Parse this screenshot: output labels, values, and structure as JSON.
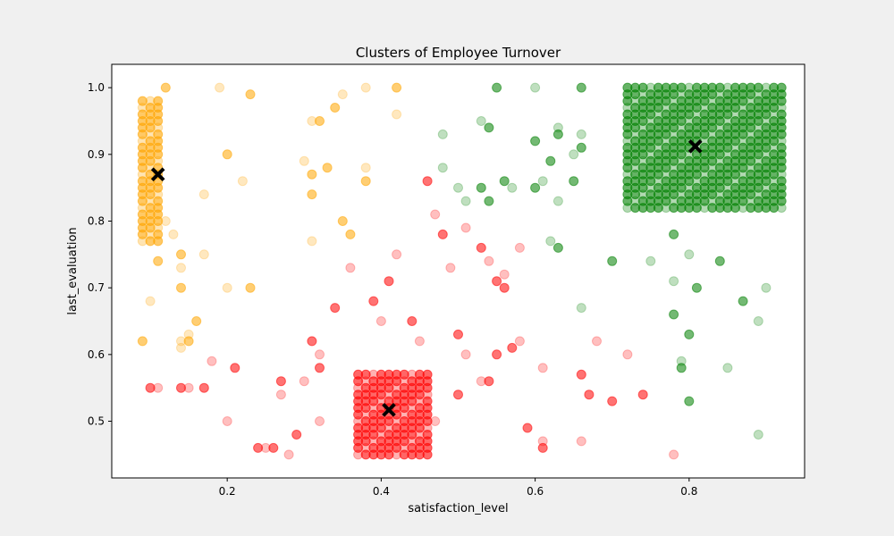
{
  "chart_data": {
    "type": "scatter",
    "title": "Clusters of Employee Turnover",
    "xlabel": "satisfaction_level",
    "ylabel": "last_evaluation",
    "xlim": [
      0.05,
      0.95
    ],
    "ylim": [
      0.415,
      1.035
    ],
    "x_ticks": [
      0.2,
      0.4,
      0.6,
      0.8
    ],
    "y_ticks": [
      0.5,
      0.6,
      0.7,
      0.8,
      0.9,
      1.0
    ],
    "x_tick_labels": [
      "0.2",
      "0.4",
      "0.6",
      "0.8"
    ],
    "y_tick_labels": [
      "0.5",
      "0.6",
      "0.7",
      "0.8",
      "0.9",
      "1.0"
    ],
    "grid": false,
    "legend": "none",
    "colors": {
      "orange": "#ffa500",
      "red": "#ff0000",
      "green": "#008000",
      "centroid": "#000000"
    },
    "clusters": [
      {
        "color": "#ffa500",
        "dense_grid": {
          "x": [
            0.09,
            0.1,
            0.11
          ],
          "y_from": 0.77,
          "y_to": 0.98,
          "y_step": 0.01
        },
        "points": [
          [
            0.12,
            1.0
          ],
          [
            0.19,
            1.0
          ],
          [
            0.23,
            0.99
          ],
          [
            0.38,
            1.0
          ],
          [
            0.42,
            1.0
          ],
          [
            0.35,
            0.99
          ],
          [
            0.34,
            0.97
          ],
          [
            0.31,
            0.95
          ],
          [
            0.32,
            0.95
          ],
          [
            0.42,
            0.96
          ],
          [
            0.2,
            0.9
          ],
          [
            0.3,
            0.89
          ],
          [
            0.33,
            0.88
          ],
          [
            0.38,
            0.88
          ],
          [
            0.31,
            0.87
          ],
          [
            0.22,
            0.86
          ],
          [
            0.38,
            0.86
          ],
          [
            0.17,
            0.84
          ],
          [
            0.31,
            0.84
          ],
          [
            0.12,
            0.8
          ],
          [
            0.35,
            0.8
          ],
          [
            0.13,
            0.78
          ],
          [
            0.36,
            0.78
          ],
          [
            0.31,
            0.77
          ],
          [
            0.14,
            0.75
          ],
          [
            0.17,
            0.75
          ],
          [
            0.11,
            0.74
          ],
          [
            0.14,
            0.73
          ],
          [
            0.14,
            0.7
          ],
          [
            0.2,
            0.7
          ],
          [
            0.23,
            0.7
          ],
          [
            0.1,
            0.68
          ],
          [
            0.16,
            0.65
          ],
          [
            0.15,
            0.63
          ],
          [
            0.09,
            0.62
          ],
          [
            0.14,
            0.62
          ],
          [
            0.15,
            0.62
          ],
          [
            0.14,
            0.61
          ]
        ]
      },
      {
        "color": "#ff0000",
        "dense_grid": {
          "x": [
            0.37,
            0.38,
            0.39,
            0.4,
            0.41,
            0.42,
            0.43,
            0.44,
            0.45,
            0.46
          ],
          "y_from": 0.45,
          "y_to": 0.57,
          "y_step": 0.01
        },
        "points": [
          [
            0.1,
            0.55
          ],
          [
            0.11,
            0.55
          ],
          [
            0.14,
            0.55
          ],
          [
            0.15,
            0.55
          ],
          [
            0.17,
            0.55
          ],
          [
            0.18,
            0.59
          ],
          [
            0.21,
            0.58
          ],
          [
            0.2,
            0.5
          ],
          [
            0.24,
            0.46
          ],
          [
            0.25,
            0.46
          ],
          [
            0.26,
            0.46
          ],
          [
            0.28,
            0.45
          ],
          [
            0.27,
            0.56
          ],
          [
            0.27,
            0.54
          ],
          [
            0.29,
            0.48
          ],
          [
            0.3,
            0.56
          ],
          [
            0.31,
            0.62
          ],
          [
            0.32,
            0.6
          ],
          [
            0.32,
            0.58
          ],
          [
            0.32,
            0.5
          ],
          [
            0.34,
            0.67
          ],
          [
            0.36,
            0.73
          ],
          [
            0.39,
            0.68
          ],
          [
            0.4,
            0.65
          ],
          [
            0.41,
            0.71
          ],
          [
            0.42,
            0.75
          ],
          [
            0.44,
            0.65
          ],
          [
            0.45,
            0.62
          ],
          [
            0.46,
            0.86
          ],
          [
            0.47,
            0.81
          ],
          [
            0.48,
            0.78
          ],
          [
            0.49,
            0.73
          ],
          [
            0.5,
            0.63
          ],
          [
            0.51,
            0.79
          ],
          [
            0.53,
            0.76
          ],
          [
            0.54,
            0.74
          ],
          [
            0.55,
            0.71
          ],
          [
            0.56,
            0.72
          ],
          [
            0.56,
            0.7
          ],
          [
            0.58,
            0.76
          ],
          [
            0.57,
            0.61
          ],
          [
            0.58,
            0.62
          ],
          [
            0.55,
            0.6
          ],
          [
            0.51,
            0.6
          ],
          [
            0.5,
            0.54
          ],
          [
            0.53,
            0.56
          ],
          [
            0.54,
            0.56
          ],
          [
            0.47,
            0.5
          ],
          [
            0.59,
            0.49
          ],
          [
            0.61,
            0.47
          ],
          [
            0.61,
            0.46
          ],
          [
            0.61,
            0.58
          ],
          [
            0.66,
            0.57
          ],
          [
            0.66,
            0.47
          ],
          [
            0.67,
            0.54
          ],
          [
            0.68,
            0.62
          ],
          [
            0.7,
            0.53
          ],
          [
            0.72,
            0.6
          ],
          [
            0.74,
            0.54
          ],
          [
            0.78,
            0.45
          ]
        ]
      },
      {
        "color": "#008000",
        "dense_grid": {
          "x": [
            0.72,
            0.73,
            0.74,
            0.75,
            0.76,
            0.77,
            0.78,
            0.79,
            0.8,
            0.81,
            0.82,
            0.83,
            0.84,
            0.85,
            0.86,
            0.87,
            0.88,
            0.89,
            0.9,
            0.91,
            0.92
          ],
          "y_from": 0.82,
          "y_to": 1.0,
          "y_step": 0.01
        },
        "points": [
          [
            0.55,
            1.0
          ],
          [
            0.6,
            1.0
          ],
          [
            0.66,
            1.0
          ],
          [
            0.53,
            0.95
          ],
          [
            0.54,
            0.94
          ],
          [
            0.63,
            0.94
          ],
          [
            0.63,
            0.93
          ],
          [
            0.48,
            0.93
          ],
          [
            0.6,
            0.92
          ],
          [
            0.66,
            0.93
          ],
          [
            0.66,
            0.91
          ],
          [
            0.65,
            0.9
          ],
          [
            0.62,
            0.89
          ],
          [
            0.48,
            0.88
          ],
          [
            0.56,
            0.86
          ],
          [
            0.61,
            0.86
          ],
          [
            0.65,
            0.86
          ],
          [
            0.5,
            0.85
          ],
          [
            0.53,
            0.85
          ],
          [
            0.57,
            0.85
          ],
          [
            0.6,
            0.85
          ],
          [
            0.51,
            0.83
          ],
          [
            0.54,
            0.83
          ],
          [
            0.63,
            0.83
          ],
          [
            0.78,
            0.78
          ],
          [
            0.62,
            0.77
          ],
          [
            0.63,
            0.76
          ],
          [
            0.8,
            0.75
          ],
          [
            0.7,
            0.74
          ],
          [
            0.75,
            0.74
          ],
          [
            0.84,
            0.74
          ],
          [
            0.78,
            0.71
          ],
          [
            0.81,
            0.7
          ],
          [
            0.9,
            0.7
          ],
          [
            0.87,
            0.68
          ],
          [
            0.66,
            0.67
          ],
          [
            0.78,
            0.66
          ],
          [
            0.89,
            0.65
          ],
          [
            0.8,
            0.63
          ],
          [
            0.79,
            0.59
          ],
          [
            0.79,
            0.58
          ],
          [
            0.85,
            0.58
          ],
          [
            0.8,
            0.53
          ],
          [
            0.89,
            0.48
          ]
        ]
      }
    ],
    "centroids": [
      {
        "x": 0.11,
        "y": 0.87
      },
      {
        "x": 0.41,
        "y": 0.517
      },
      {
        "x": 0.808,
        "y": 0.912
      }
    ]
  }
}
